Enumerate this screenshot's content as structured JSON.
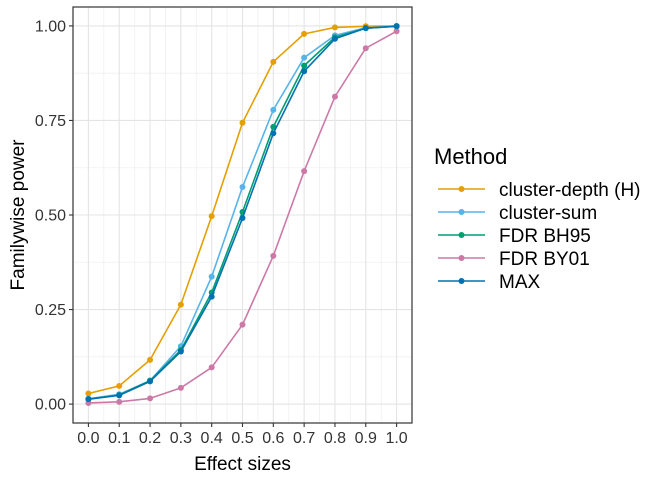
{
  "chart_data": {
    "type": "line",
    "xlabel": "Effect sizes",
    "ylabel": "Familywise power",
    "x": [
      0.0,
      0.1,
      0.2,
      0.3,
      0.4,
      0.5,
      0.6,
      0.7,
      0.8,
      0.9,
      1.0
    ],
    "x_tick_labels": [
      "0.0",
      "0.1",
      "0.2",
      "0.3",
      "0.4",
      "0.5",
      "0.6",
      "0.7",
      "0.8",
      "0.9",
      "1.0"
    ],
    "y_ticks": [
      0.0,
      0.25,
      0.5,
      0.75,
      1.0
    ],
    "y_tick_labels": [
      "0.00",
      "0.25",
      "0.50",
      "0.75",
      "1.00"
    ],
    "xlim": [
      -0.05,
      1.05
    ],
    "ylim": [
      -0.05,
      1.05
    ],
    "grid": true,
    "legend": {
      "title": "Method",
      "position": "right"
    },
    "series": [
      {
        "name": "cluster-depth (H)",
        "color": "#E69F00",
        "values": [
          0.028,
          0.048,
          0.117,
          0.263,
          0.497,
          0.744,
          0.905,
          0.979,
          0.996,
          0.999,
          1.0
        ]
      },
      {
        "name": "cluster-sum",
        "color": "#56B4E9",
        "values": [
          0.014,
          0.026,
          0.062,
          0.153,
          0.337,
          0.574,
          0.778,
          0.916,
          0.975,
          0.995,
          0.999
        ]
      },
      {
        "name": "FDR BH95",
        "color": "#009E73",
        "values": [
          0.013,
          0.024,
          0.062,
          0.143,
          0.295,
          0.508,
          0.733,
          0.895,
          0.97,
          0.994,
          0.999
        ]
      },
      {
        "name": "FDR BY01",
        "color": "#CC79A7",
        "values": [
          0.003,
          0.006,
          0.015,
          0.043,
          0.097,
          0.21,
          0.392,
          0.616,
          0.813,
          0.941,
          0.986
        ]
      },
      {
        "name": "MAX",
        "color": "#0072B2",
        "values": [
          0.013,
          0.023,
          0.06,
          0.139,
          0.284,
          0.492,
          0.716,
          0.88,
          0.966,
          0.994,
          0.999
        ]
      }
    ]
  }
}
